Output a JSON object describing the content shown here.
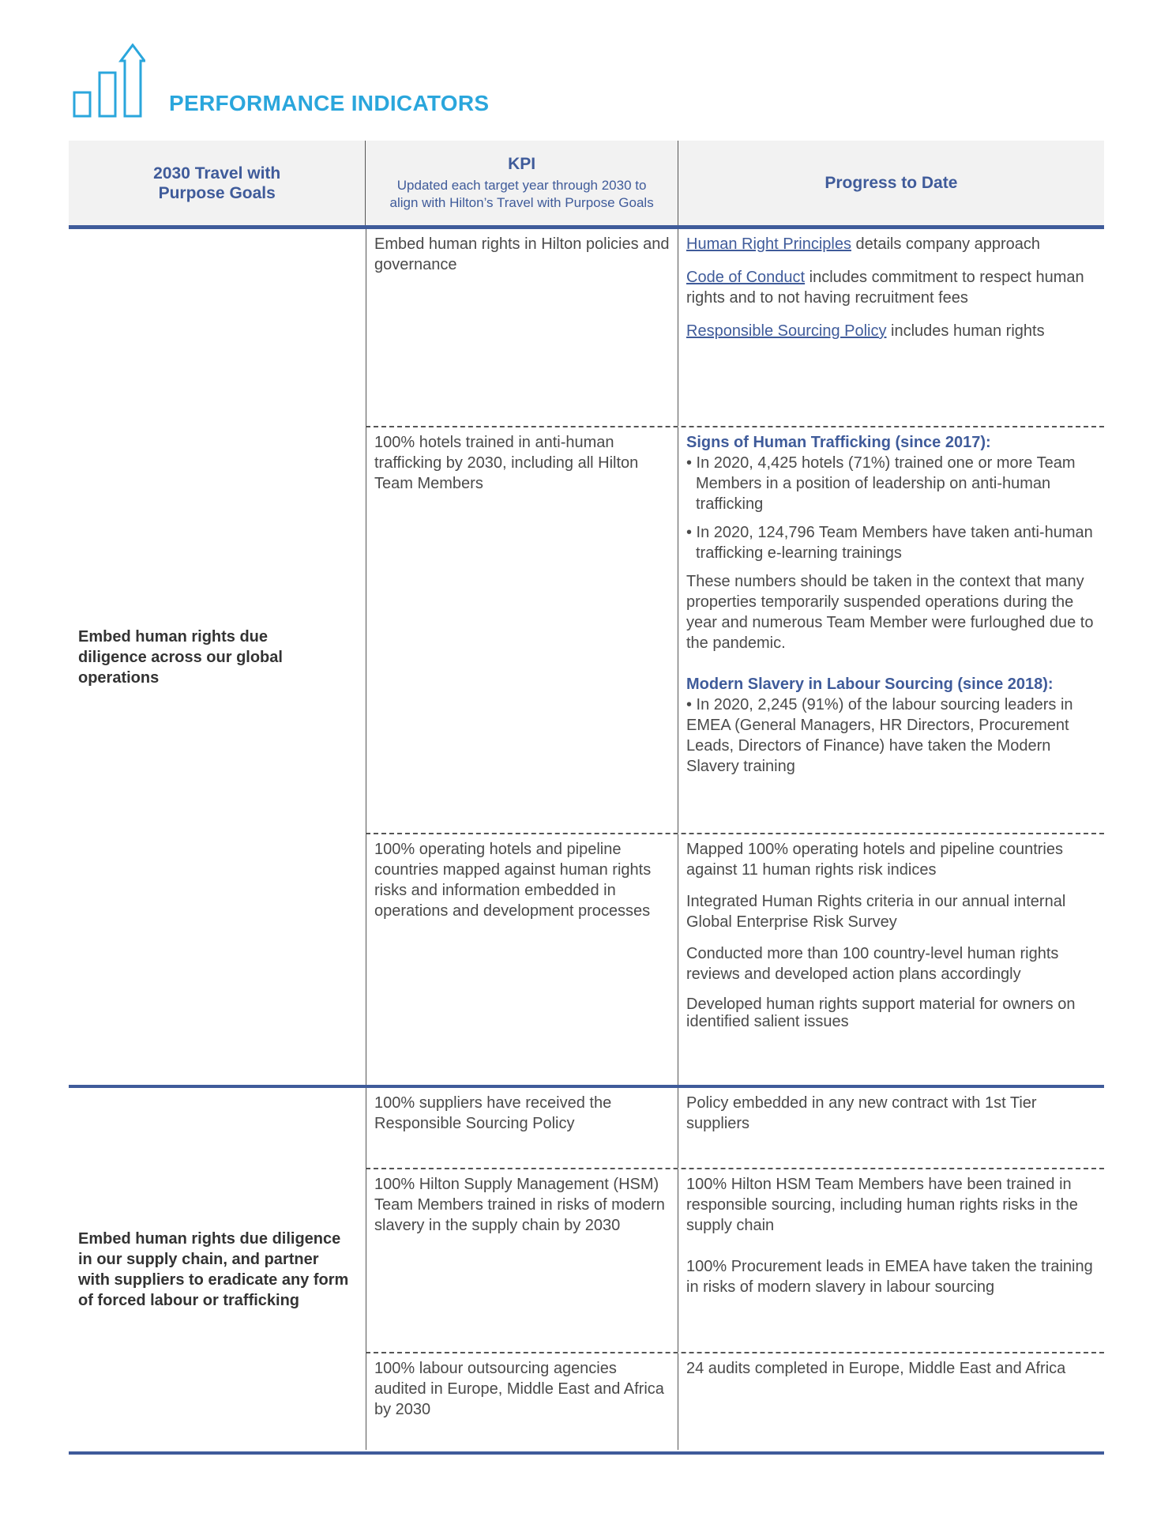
{
  "header": {
    "title": "PERFORMANCE INDICATORS",
    "icon": "bar-chart-growth-icon",
    "accent": "#2aa6dc",
    "table_blue": "#3f5b9a"
  },
  "columns": {
    "goals": "2030 Travel with Purpose Goals",
    "kpi": "KPI",
    "kpi_sub": "Updated each target year through 2030 to align with Hilton’s Travel with Purpose Goals",
    "progress": "Progress to Date"
  },
  "groups": [
    {
      "goal": "Embed human rights due diligence across our global operations",
      "rows": [
        {
          "kpi": "Embed human rights in Hilton policies and governance",
          "p1_link": "Human Right Principles",
          "p1_text": " details company approach",
          "p2_link": "Code of Conduct",
          "p2_text": " includes commitment to respect human rights and to not having recruitment fees",
          "p3_link": "Responsible Sourcing Policy",
          "p3_text": " includes human rights"
        },
        {
          "kpi": "100% hotels trained in anti-human trafficking by 2030, including all Hilton Team Members",
          "h1": "Signs of Human Trafficking (since 2017):",
          "b1": "• In 2020, 4,425 hotels (71%) trained one or more Team Members in a position of leadership on anti-human trafficking",
          "b2": "• In 2020, 124,796 Team Members have taken anti-human trafficking e-learning trainings",
          "note": "These numbers should be taken in the context that many properties temporarily suspended operations during the year and numerous Team Member were furloughed due to the pandemic.",
          "h2": "Modern Slavery in Labour Sourcing (since 2018):",
          "b3": "• In 2020, 2,245 (91%) of the labour sourcing leaders in EMEA (General Managers, HR Directors, Procurement Leads, Directors of Finance) have taken the Modern Slavery training"
        },
        {
          "kpi": "100% operating hotels and pipeline countries mapped against human rights risks and information embedded in operations and development processes",
          "p1": "Mapped 100% operating hotels and pipeline countries against 11 human rights risk indices",
          "p2": "Integrated Human Rights criteria in our annual internal Global Enterprise Risk Survey",
          "p3": "Conducted more than 100 country-level human rights reviews and developed action plans accordingly",
          "p4": "Developed human rights support material for owners on identified salient issues"
        }
      ]
    },
    {
      "goal": "Embed human rights due diligence in our supply chain, and partner with suppliers to eradicate any form of forced labour or trafficking",
      "rows": [
        {
          "kpi": "100% suppliers have received the Responsible Sourcing Policy",
          "p1": "Policy embedded in any new contract with 1st Tier suppliers"
        },
        {
          "kpi": "100% Hilton Supply Management (HSM) Team Members trained in risks of modern slavery in the supply chain by 2030",
          "p1": "100% Hilton HSM Team Members have been trained in responsible sourcing, including human rights risks in the supply chain",
          "p2": "100% Procurement leads in EMEA have taken the training in risks of modern slavery in labour sourcing"
        },
        {
          "kpi": "100% labour outsourcing agencies audited in Europe, Middle East and Africa by 2030",
          "p1": "24 audits completed in Europe, Middle East and Africa"
        }
      ]
    }
  ]
}
